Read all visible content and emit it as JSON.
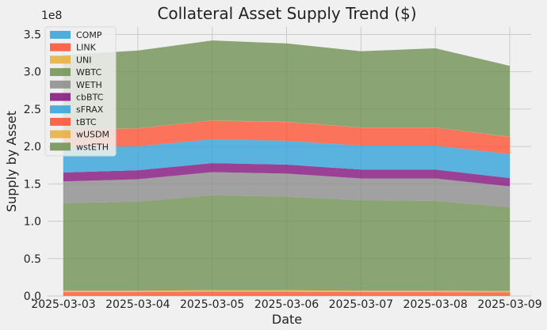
{
  "chart_data": {
    "type": "area",
    "stacked": true,
    "title": "Collateral Asset Supply Trend ($)",
    "xlabel": "Date",
    "ylabel": "Supply by Asset",
    "y_offset_label": "1e8",
    "y_scale": 100000000,
    "ylim": [
      0,
      3.6
    ],
    "yticks": [
      "0.0",
      "0.5",
      "1.0",
      "1.5",
      "2.0",
      "2.5",
      "3.0",
      "3.5"
    ],
    "x": [
      "2025-03-03",
      "2025-03-04",
      "2025-03-05",
      "2025-03-06",
      "2025-03-07",
      "2025-03-08",
      "2025-03-09"
    ],
    "grid": true,
    "legend_position": "upper-left",
    "series": [
      {
        "name": "COMP",
        "color": "#30a2da",
        "values": [
          0.002,
          0.002,
          0.002,
          0.002,
          0.002,
          0.002,
          0.002
        ]
      },
      {
        "name": "LINK",
        "color": "#fc4f30",
        "values": [
          0.05,
          0.05,
          0.055,
          0.055,
          0.05,
          0.05,
          0.045
        ]
      },
      {
        "name": "UNI",
        "color": "#e5ae38",
        "values": [
          0.02,
          0.02,
          0.02,
          0.02,
          0.02,
          0.02,
          0.02
        ]
      },
      {
        "name": "WBTC",
        "color": "#6d904f",
        "values": [
          1.17,
          1.19,
          1.27,
          1.25,
          1.21,
          1.2,
          1.12
        ]
      },
      {
        "name": "WETH",
        "color": "#8b8b8b",
        "values": [
          0.29,
          0.3,
          0.31,
          0.31,
          0.29,
          0.3,
          0.28
        ]
      },
      {
        "name": "cbBTC",
        "color": "#810f7c",
        "values": [
          0.12,
          0.12,
          0.12,
          0.12,
          0.12,
          0.12,
          0.11
        ]
      },
      {
        "name": "sFRAX",
        "color": "#30a2da",
        "values": [
          0.34,
          0.32,
          0.32,
          0.32,
          0.32,
          0.32,
          0.32
        ]
      },
      {
        "name": "tBTC",
        "color": "#fc4f30",
        "values": [
          0.23,
          0.24,
          0.25,
          0.25,
          0.24,
          0.24,
          0.23
        ]
      },
      {
        "name": "wUSDM",
        "color": "#e5ae38",
        "values": [
          0.002,
          0.002,
          0.002,
          0.002,
          0.002,
          0.002,
          0.002
        ]
      },
      {
        "name": "wstETH",
        "color": "#6d904f",
        "values": [
          1.0,
          1.04,
          1.07,
          1.05,
          1.02,
          1.06,
          0.95
        ]
      }
    ]
  }
}
